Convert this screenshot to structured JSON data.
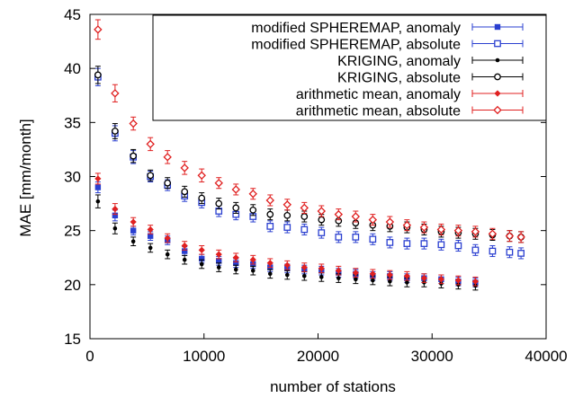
{
  "chart_data": {
    "type": "scatter",
    "title": "",
    "xlabel": "number of stations",
    "ylabel": "MAE [mm/month]",
    "xlim": [
      0,
      40000
    ],
    "ylim": [
      15,
      45
    ],
    "xticks": [
      0,
      10000,
      20000,
      30000,
      40000
    ],
    "yticks": [
      15,
      20,
      25,
      30,
      35,
      40,
      45
    ],
    "grid": false,
    "legend_position": "top-right",
    "series": [
      {
        "name": "modified SPHEREMAP, anomaly",
        "marker": "filled-square",
        "color": "#2a3fd0",
        "x": [
          700,
          2200,
          3800,
          5300,
          6800,
          8300,
          9800,
          11300,
          12800,
          14300,
          15800,
          17300,
          18800,
          20300,
          21800,
          23300,
          24800,
          26300,
          27800,
          29300,
          30800,
          32300,
          33800
        ],
        "y": [
          29.0,
          26.4,
          25.0,
          24.5,
          24.1,
          23.1,
          22.4,
          22.2,
          22.0,
          21.9,
          21.6,
          21.5,
          21.4,
          21.3,
          21.1,
          21.0,
          20.8,
          20.8,
          20.6,
          20.6,
          20.5,
          20.3,
          20.2
        ],
        "err": [
          0.5,
          0.5,
          0.4,
          0.4,
          0.4,
          0.4,
          0.4,
          0.4,
          0.4,
          0.4,
          0.4,
          0.4,
          0.4,
          0.4,
          0.4,
          0.4,
          0.4,
          0.4,
          0.4,
          0.4,
          0.4,
          0.4,
          0.4
        ]
      },
      {
        "name": "modified SPHEREMAP, absolute",
        "marker": "open-square",
        "color": "#2a3fd0",
        "x": [
          700,
          2200,
          3800,
          5300,
          6800,
          8300,
          9800,
          11300,
          12800,
          14300,
          15800,
          17300,
          18800,
          20300,
          21800,
          23300,
          24800,
          26300,
          27800,
          29300,
          30800,
          32300,
          33800,
          35300,
          36800,
          37800
        ],
        "y": [
          39.2,
          34.0,
          31.8,
          30.0,
          29.2,
          28.2,
          27.6,
          26.8,
          26.5,
          26.3,
          25.4,
          25.3,
          25.1,
          24.8,
          24.4,
          24.4,
          24.2,
          23.9,
          23.8,
          23.8,
          23.7,
          23.6,
          23.2,
          23.1,
          23.0,
          22.9
        ],
        "err": [
          0.8,
          0.7,
          0.6,
          0.5,
          0.5,
          0.5,
          0.5,
          0.5,
          0.5,
          0.5,
          0.5,
          0.5,
          0.5,
          0.5,
          0.5,
          0.5,
          0.5,
          0.5,
          0.5,
          0.5,
          0.5,
          0.5,
          0.5,
          0.5,
          0.5,
          0.5
        ]
      },
      {
        "name": "KRIGING, anomaly",
        "marker": "dot",
        "color": "#000000",
        "x": [
          700,
          2200,
          3800,
          5300,
          6800,
          8300,
          9800,
          11300,
          12800,
          14300,
          15800,
          17300,
          18800,
          20300,
          21800,
          23300,
          24800,
          26300,
          27800,
          29300,
          30800,
          32300,
          33800
        ],
        "y": [
          27.7,
          25.2,
          24.0,
          23.4,
          22.8,
          22.3,
          21.9,
          21.6,
          21.4,
          21.3,
          21.0,
          20.9,
          20.8,
          20.7,
          20.6,
          20.5,
          20.4,
          20.3,
          20.2,
          20.2,
          20.1,
          20.0,
          19.9
        ],
        "err": [
          0.6,
          0.5,
          0.4,
          0.4,
          0.4,
          0.4,
          0.4,
          0.4,
          0.4,
          0.4,
          0.4,
          0.4,
          0.4,
          0.4,
          0.4,
          0.4,
          0.4,
          0.4,
          0.4,
          0.4,
          0.4,
          0.4,
          0.4
        ]
      },
      {
        "name": "KRIGING, absolute",
        "marker": "open-circle",
        "color": "#000000",
        "x": [
          700,
          2200,
          3800,
          5300,
          6800,
          8300,
          9800,
          11300,
          12800,
          14300,
          15800,
          17300,
          18800,
          20300,
          21800,
          23300,
          24800,
          26300,
          27800,
          29300,
          30800,
          32300,
          33800,
          35300,
          36800,
          37800
        ],
        "y": [
          39.4,
          34.2,
          31.9,
          30.1,
          29.4,
          28.6,
          28.0,
          27.5,
          27.1,
          26.9,
          26.5,
          26.4,
          26.3,
          26.0,
          25.9,
          25.7,
          25.5,
          25.4,
          25.3,
          25.1,
          24.9,
          24.8,
          24.7,
          24.6,
          24.5,
          24.4
        ],
        "err": [
          0.8,
          0.7,
          0.6,
          0.5,
          0.5,
          0.5,
          0.5,
          0.5,
          0.5,
          0.5,
          0.5,
          0.5,
          0.5,
          0.5,
          0.5,
          0.5,
          0.5,
          0.5,
          0.5,
          0.5,
          0.5,
          0.5,
          0.5,
          0.5,
          0.5,
          0.5
        ]
      },
      {
        "name": "arithmetic mean, anomaly",
        "marker": "filled-diamond",
        "color": "#e02020",
        "x": [
          700,
          2200,
          3800,
          5300,
          6800,
          8300,
          9800,
          11300,
          12800,
          14300,
          15800,
          17300,
          18800,
          20300,
          21800,
          23300,
          24800,
          26300,
          27800,
          29300,
          30800,
          32300,
          33800
        ],
        "y": [
          29.8,
          27.0,
          25.8,
          25.1,
          24.3,
          23.6,
          23.2,
          22.8,
          22.5,
          22.3,
          22.0,
          21.8,
          21.6,
          21.5,
          21.3,
          21.1,
          21.0,
          20.9,
          20.8,
          20.6,
          20.5,
          20.4,
          20.3
        ],
        "err": [
          0.5,
          0.5,
          0.4,
          0.4,
          0.4,
          0.4,
          0.4,
          0.4,
          0.4,
          0.4,
          0.4,
          0.4,
          0.4,
          0.4,
          0.4,
          0.4,
          0.4,
          0.4,
          0.4,
          0.4,
          0.4,
          0.4,
          0.4
        ]
      },
      {
        "name": "arithmetic mean, absolute",
        "marker": "open-diamond",
        "color": "#e02020",
        "x": [
          700,
          2200,
          3800,
          5300,
          6800,
          8300,
          9800,
          11300,
          12800,
          14300,
          15800,
          17300,
          18800,
          20300,
          21800,
          23300,
          24800,
          26300,
          27800,
          29300,
          30800,
          32300,
          33800,
          35300,
          36800,
          37800
        ],
        "y": [
          43.6,
          37.7,
          34.9,
          33.0,
          31.8,
          30.8,
          30.1,
          29.4,
          28.8,
          28.4,
          27.8,
          27.4,
          27.1,
          26.8,
          26.5,
          26.3,
          26.0,
          25.8,
          25.5,
          25.3,
          25.1,
          25.0,
          24.9,
          24.7,
          24.5,
          24.4
        ],
        "err": [
          0.9,
          0.8,
          0.6,
          0.6,
          0.6,
          0.6,
          0.6,
          0.5,
          0.5,
          0.5,
          0.5,
          0.5,
          0.5,
          0.5,
          0.5,
          0.5,
          0.5,
          0.5,
          0.5,
          0.5,
          0.5,
          0.5,
          0.5,
          0.5,
          0.5,
          0.5
        ]
      }
    ]
  }
}
